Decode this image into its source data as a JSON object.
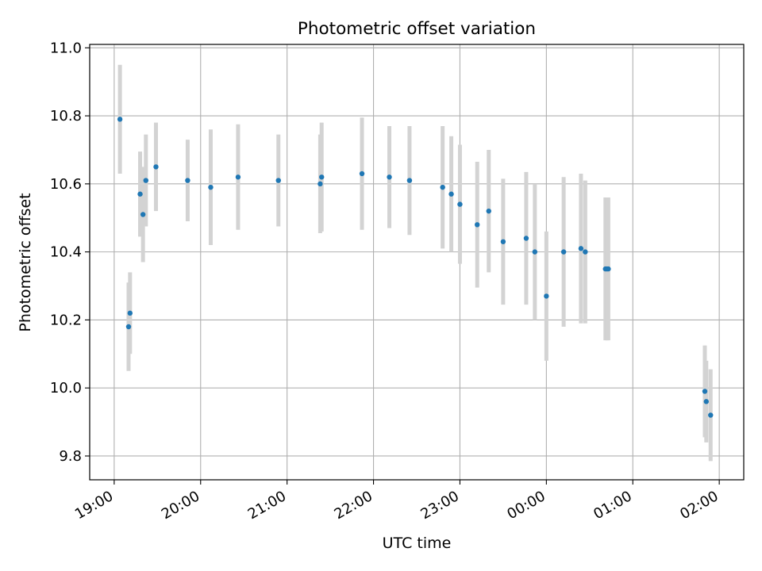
{
  "chart_data": {
    "type": "scatter",
    "title": "Photometric offset variation",
    "xlabel": "UTC time",
    "ylabel": "Photometric offset",
    "x_axis": "time",
    "xlim": [
      "18:43",
      "02:17 +1d"
    ],
    "ylim": [
      9.73,
      11.01
    ],
    "xticks": [
      "19:00",
      "20:00",
      "21:00",
      "22:00",
      "23:00",
      "00:00",
      "01:00",
      "02:00"
    ],
    "yticks": [
      "9.8",
      "10.0",
      "10.2",
      "10.4",
      "10.6",
      "10.8",
      "11.0"
    ],
    "grid": true,
    "colors": {
      "points": "#1f77b4",
      "errorbars": "#d3d3d3",
      "grid": "#b0b0b0"
    },
    "series": [
      {
        "points": [
          {
            "t": "19:04",
            "y": 10.79,
            "err": 0.16
          },
          {
            "t": "19:10",
            "y": 10.18,
            "err": 0.13
          },
          {
            "t": "19:11",
            "y": 10.22,
            "err": 0.12
          },
          {
            "t": "19:18",
            "y": 10.57,
            "err": 0.125
          },
          {
            "t": "19:20",
            "y": 10.51,
            "err": 0.14
          },
          {
            "t": "19:22",
            "y": 10.61,
            "err": 0.135
          },
          {
            "t": "19:29",
            "y": 10.65,
            "err": 0.13
          },
          {
            "t": "19:51",
            "y": 10.61,
            "err": 0.12
          },
          {
            "t": "20:07",
            "y": 10.59,
            "err": 0.17
          },
          {
            "t": "20:26",
            "y": 10.62,
            "err": 0.155
          },
          {
            "t": "20:54",
            "y": 10.61,
            "err": 0.135
          },
          {
            "t": "21:23",
            "y": 10.6,
            "err": 0.145
          },
          {
            "t": "21:24",
            "y": 10.62,
            "err": 0.16
          },
          {
            "t": "21:52",
            "y": 10.63,
            "err": 0.165
          },
          {
            "t": "22:11",
            "y": 10.62,
            "err": 0.15
          },
          {
            "t": "22:25",
            "y": 10.61,
            "err": 0.16
          },
          {
            "t": "22:48",
            "y": 10.59,
            "err": 0.18
          },
          {
            "t": "22:54",
            "y": 10.57,
            "err": 0.17
          },
          {
            "t": "23:00",
            "y": 10.54,
            "err": 0.175
          },
          {
            "t": "23:12",
            "y": 10.48,
            "err": 0.185
          },
          {
            "t": "23:20",
            "y": 10.52,
            "err": 0.18
          },
          {
            "t": "23:30",
            "y": 10.43,
            "err": 0.185
          },
          {
            "t": "23:46",
            "y": 10.44,
            "err": 0.195
          },
          {
            "t": "23:52",
            "y": 10.4,
            "err": 0.2
          },
          {
            "t": "00:00",
            "y": 10.27,
            "err": 0.19
          },
          {
            "t": "00:12",
            "y": 10.4,
            "err": 0.22
          },
          {
            "t": "00:24",
            "y": 10.41,
            "err": 0.22
          },
          {
            "t": "00:27",
            "y": 10.4,
            "err": 0.21
          },
          {
            "t": "00:41",
            "y": 10.35,
            "err": 0.21
          },
          {
            "t": "00:42",
            "y": 10.35,
            "err": 0.21
          },
          {
            "t": "00:43",
            "y": 10.35,
            "err": 0.21
          },
          {
            "t": "01:50",
            "y": 9.99,
            "err": 0.135
          },
          {
            "t": "01:51",
            "y": 9.96,
            "err": 0.12
          },
          {
            "t": "01:54",
            "y": 9.92,
            "err": 0.135
          }
        ]
      }
    ]
  }
}
